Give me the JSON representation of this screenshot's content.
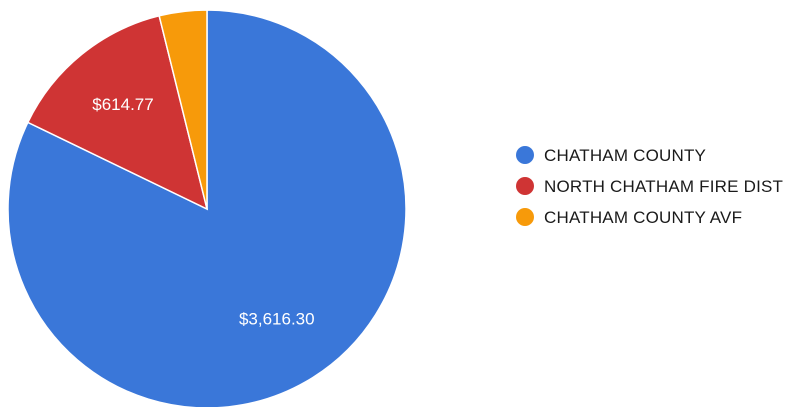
{
  "chart_data": {
    "type": "pie",
    "title": "",
    "legend_position": "right",
    "series": [
      {
        "name": "CHATHAM COUNTY",
        "value": 3616.3,
        "label": "$3,616.30",
        "color": "#3a77d9"
      },
      {
        "name": "NORTH CHATHAM FIRE DIST",
        "value": 614.77,
        "label": "$614.77",
        "color": "#cf3434"
      },
      {
        "name": "CHATHAM COUNTY AVF",
        "value": 170.0,
        "label": "",
        "color": "#f79a0a"
      }
    ]
  }
}
